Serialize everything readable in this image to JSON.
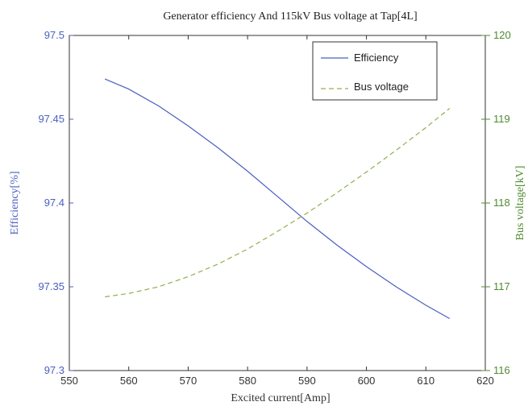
{
  "chart_data": {
    "type": "line",
    "title": "Generator efficiency And 115kV Bus voltage at Tap[4L]",
    "xlabel": "Excited current[Amp]",
    "ylabel_left": "Efficiency[%]",
    "ylabel_right": "Bus voltage[kV]",
    "xlim": [
      550,
      620
    ],
    "ylim_left": [
      97.3,
      97.5
    ],
    "ylim_right": [
      116,
      120
    ],
    "x_ticks": [
      550,
      560,
      570,
      580,
      590,
      600,
      610,
      620
    ],
    "x_tick_labels": [
      "550",
      "560",
      "570",
      "580",
      "590",
      "600",
      "610",
      "620"
    ],
    "y_left_ticks": [
      97.3,
      97.35,
      97.4,
      97.45,
      97.5
    ],
    "y_left_tick_labels": [
      "97.3",
      "97.35",
      "97.4",
      "97.45",
      "97.5"
    ],
    "y_right_ticks": [
      116,
      117,
      118,
      119,
      120
    ],
    "y_right_tick_labels": [
      "116",
      "117",
      "118",
      "119",
      "120"
    ],
    "legend_position": "top-right",
    "grid": false,
    "series": [
      {
        "name": "Efficiency",
        "axis": "left",
        "style": "solid",
        "color": "#4a5fc1",
        "x": [
          556,
          560,
          565,
          570,
          575,
          580,
          585,
          590,
          595,
          600,
          605,
          610,
          614
        ],
        "y": [
          97.474,
          97.468,
          97.458,
          97.446,
          97.433,
          97.419,
          97.404,
          97.389,
          97.375,
          97.362,
          97.35,
          97.339,
          97.331
        ]
      },
      {
        "name": "Bus voltage",
        "axis": "right",
        "style": "dashed",
        "color": "#8fb04f",
        "x": [
          556,
          560,
          565,
          570,
          575,
          580,
          585,
          590,
          595,
          600,
          605,
          610,
          614
        ],
        "y": [
          116.88,
          116.92,
          117.0,
          117.12,
          117.27,
          117.45,
          117.66,
          117.88,
          118.12,
          118.37,
          118.63,
          118.9,
          119.13
        ]
      }
    ]
  },
  "colors": {
    "left_axis": "#4a5fc1",
    "right_axis": "#4f8a2f",
    "frame": "#333333"
  }
}
